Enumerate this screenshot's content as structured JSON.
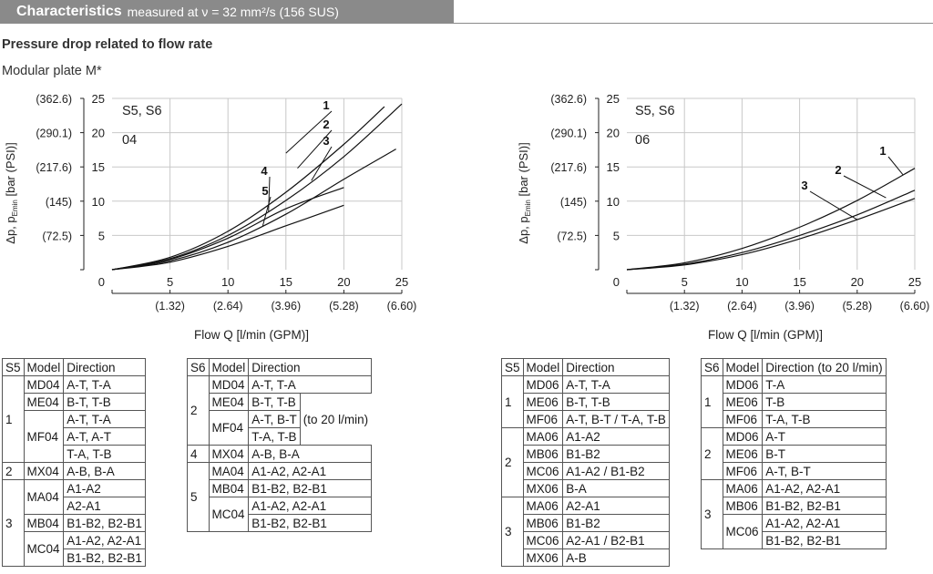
{
  "header": {
    "title": "Characteristics",
    "subtitle": "measured at ν = 32 mm²/s (156 SUS)"
  },
  "section_title": "Pressure drop related to flow rate",
  "section_subtitle": "Modular plate M*",
  "chart_data": [
    {
      "type": "line",
      "size_labels": [
        "S5, S6",
        "04"
      ],
      "ylabel": "Δp, pEmin [bar (PSI)]",
      "ylabel_main": "Δp, p",
      "ylabel_sub": "Emin",
      "ylabel_unit": "[bar (PSI)]",
      "xlabel": "Flow Q [l/min (GPM)]",
      "xlim": [
        0,
        25
      ],
      "ylim": [
        0,
        25
      ],
      "x_ticks": [
        "5",
        "10",
        "15",
        "20",
        "25"
      ],
      "x_ticks_secondary": [
        "(1.32)",
        "(2.64)",
        "(3.96)",
        "(5.28)",
        "(6.60)"
      ],
      "y_ticks": [
        "5",
        "10",
        "15",
        "20",
        "25"
      ],
      "y_ticks_secondary": [
        "(72.5)",
        "(145)",
        "(217.6)",
        "(290.1)",
        "(362.6)"
      ],
      "origin_label": "0",
      "grid": true,
      "series": [
        {
          "name": "1",
          "x": [
            0,
            5,
            10,
            15,
            20,
            23.5
          ],
          "y": [
            0,
            1.8,
            5.6,
            11.3,
            18.3,
            23.8
          ]
        },
        {
          "name": "2",
          "x": [
            0,
            5,
            10,
            15,
            20,
            25
          ],
          "y": [
            0,
            1.6,
            5.0,
            10.1,
            16.5,
            24.2
          ]
        },
        {
          "name": "3",
          "x": [
            0,
            5,
            10,
            15,
            20,
            24.5
          ],
          "y": [
            0,
            1.3,
            4.0,
            8.1,
            13.2,
            17.6
          ]
        },
        {
          "name": "4",
          "x": [
            0,
            5,
            10,
            15,
            20
          ],
          "y": [
            0,
            1.5,
            4.6,
            8.9,
            12.0
          ]
        },
        {
          "name": "5",
          "x": [
            0,
            5,
            10,
            15,
            20
          ],
          "y": [
            0,
            1.1,
            3.4,
            6.4,
            9.4
          ]
        }
      ]
    },
    {
      "type": "line",
      "size_labels": [
        "S5, S6",
        "06"
      ],
      "ylabel": "Δp, pEmin [bar (PSI)]",
      "ylabel_main": "Δp, p",
      "ylabel_sub": "Emin",
      "ylabel_unit": "[bar (PSI)]",
      "xlabel": "Flow Q [l/min (GPM)]",
      "xlim": [
        0,
        25
      ],
      "ylim": [
        0,
        25
      ],
      "x_ticks": [
        "5",
        "10",
        "15",
        "20",
        "25"
      ],
      "x_ticks_secondary": [
        "(1.32)",
        "(2.64)",
        "(3.96)",
        "(5.28)",
        "(6.60)"
      ],
      "y_ticks": [
        "5",
        "10",
        "15",
        "20",
        "25"
      ],
      "y_ticks_secondary": [
        "(72.5)",
        "(145)",
        "(217.6)",
        "(290.1)",
        "(362.6)"
      ],
      "origin_label": "0",
      "grid": true,
      "series": [
        {
          "name": "1",
          "x": [
            0,
            5,
            10,
            15,
            20,
            25
          ],
          "y": [
            0,
            1.0,
            3.1,
            6.2,
            10.1,
            14.8
          ]
        },
        {
          "name": "2",
          "x": [
            0,
            5,
            10,
            15,
            20,
            25
          ],
          "y": [
            0,
            0.8,
            2.5,
            5.0,
            8.0,
            11.6
          ]
        },
        {
          "name": "3",
          "x": [
            0,
            5,
            10,
            15,
            20,
            25
          ],
          "y": [
            0,
            0.7,
            2.2,
            4.5,
            7.3,
            10.4
          ]
        }
      ]
    }
  ],
  "tables": {
    "headers": {
      "s5": "S5",
      "s6": "S6",
      "model": "Model",
      "direction": "Direction",
      "direction_20": "Direction (to 20 l/min)",
      "note_20": "(to 20 l/min)"
    },
    "t1": {
      "g1": "1",
      "g2": "2",
      "g3": "3",
      "md04": "MD04",
      "md04_d": "A-T, T-A",
      "me04": "ME04",
      "me04_d": "B-T, T-B",
      "mf04": "MF04",
      "mf04_d1": "A-T, T-A",
      "mf04_d2": "A-T, A-T",
      "mf04_d3": "T-A, T-B",
      "mx04": "MX04",
      "mx04_d": "A-B, B-A",
      "ma04": "MA04",
      "ma04_d1": "A1-A2",
      "ma04_d2": "A2-A1",
      "mb04": "MB04",
      "mb04_d": "B1-B2, B2-B1",
      "mc04": "MC04",
      "mc04_d1": "A1-A2, A2-A1",
      "mc04_d2": "B1-B2, B2-B1"
    },
    "t2": {
      "g2": "2",
      "g4": "4",
      "g5": "5",
      "md04": "MD04",
      "md04_d": "A-T, T-A",
      "me04": "ME04",
      "me04_d": "B-T, T-B",
      "mf04": "MF04",
      "mf04_d1": "A-T, B-T",
      "mf04_d2": "T-A, T-B",
      "mx04": "MX04",
      "mx04_d": "A-B, B-A",
      "ma04": "MA04",
      "ma04_d": "A1-A2, A2-A1",
      "mb04": "MB04",
      "mb04_d": "B1-B2, B2-B1",
      "mc04": "MC04",
      "mc04_d1": "A1-A2, A2-A1",
      "mc04_d2": "B1-B2, B2-B1"
    },
    "t3": {
      "g1": "1",
      "g2": "2",
      "g3": "3",
      "md06": "MD06",
      "md06_d": "A-T, T-A",
      "me06": "ME06",
      "me06_d": "B-T, T-B",
      "mf06": "MF06",
      "mf06_d": "A-T, B-T / T-A, T-B",
      "ma06a": "MA06",
      "ma06a_d": "A1-A2",
      "mb06a": "MB06",
      "mb06a_d": "B1-B2",
      "mc06a": "MC06",
      "mc06a_d": "A1-A2 / B1-B2",
      "mx06a": "MX06",
      "mx06a_d": "B-A",
      "ma06b": "MA06",
      "ma06b_d": "A2-A1",
      "mb06b": "MB06",
      "mb06b_d": "B1-B2",
      "mc06b": "MC06",
      "mc06b_d": "A2-A1 / B2-B1",
      "mx06b": "MX06",
      "mx06b_d": "A-B"
    },
    "t4": {
      "g1": "1",
      "g2": "2",
      "g3": "3",
      "md06a": "MD06",
      "md06a_d": "T-A",
      "me06a": "ME06",
      "me06a_d": "T-B",
      "mf06a": "MF06",
      "mf06a_d": "T-A, T-B",
      "md06b": "MD06",
      "md06b_d": "A-T",
      "me06b": "ME06",
      "me06b_d": "B-T",
      "mf06b": "MF06",
      "mf06b_d": "A-T, B-T",
      "ma06": "MA06",
      "ma06_d": "A1-A2, A2-A1",
      "mb06": "MB06",
      "mb06_d": "B1-B2, B2-B1",
      "mc06": "MC06",
      "mc06_d1": "A1-A2, A2-A1",
      "mc06_d2": "B1-B2, B2-B1"
    }
  }
}
